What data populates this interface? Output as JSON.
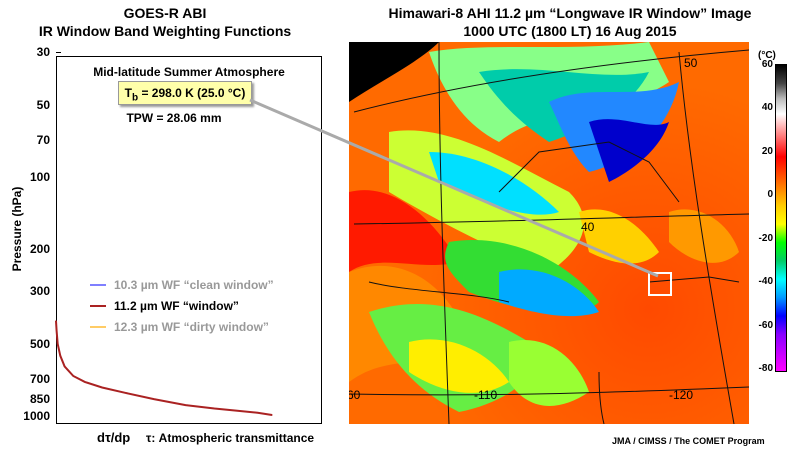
{
  "left_panel": {
    "title_line1": "GOES-R ABI",
    "title_line2": "IR Window Band Weighting Functions",
    "atmosphere": "Mid-latitude Summer Atmosphere",
    "tb_prefix": "T",
    "tb_sub": "b",
    "tb_value": " = 298.0 K (25.0 °C)",
    "tpw": "TPW = 28.06 mm",
    "x_label_main": "dτ/dp",
    "x_label_desc": "τ: Atmospheric transmittance"
  },
  "right_panel": {
    "title_line1": "Himawari-8 AHI 11.2 µm “Longwave IR Window” Image",
    "title_line2": "1000 UTC (1800 LT)  16 Aug 2015",
    "credit": "JMA / CIMSS / The COMET Program",
    "map_labels": [
      "50",
      "40",
      "-110",
      "-120",
      "60"
    ],
    "colorbar": {
      "unit": "(°C)",
      "ticks": [
        "60",
        "40",
        "20",
        "0",
        "-20",
        "-40",
        "-60",
        "-80"
      ],
      "min": -80,
      "max": 60
    }
  },
  "chart_data": {
    "type": "line",
    "xlabel": "dτ/dp",
    "ylabel": "Pressure (hPa)",
    "y_scale": "log",
    "y_reversed": true,
    "ylim": [
      30,
      1100
    ],
    "y_ticks": [
      30,
      50,
      70,
      100,
      200,
      300,
      500,
      700,
      850,
      1000
    ],
    "y_tick_labels": [
      "30",
      "50",
      "70",
      "100",
      "200",
      "300",
      "500",
      "700",
      "850",
      "1000"
    ],
    "legend": "left-middle",
    "series": [
      {
        "name": "10.3 µm WF “clean window”",
        "color": "#7f7fff",
        "shown": false,
        "points": []
      },
      {
        "name": "11.2 µm WF “window”",
        "color": "#aa2222",
        "shown": true,
        "points": [
          [
            0.0,
            400
          ],
          [
            0.002,
            440
          ],
          [
            0.006,
            500
          ],
          [
            0.015,
            560
          ],
          [
            0.03,
            620
          ],
          [
            0.06,
            680
          ],
          [
            0.1,
            720
          ],
          [
            0.16,
            760
          ],
          [
            0.24,
            800
          ],
          [
            0.34,
            850
          ],
          [
            0.45,
            900
          ],
          [
            0.55,
            930
          ],
          [
            0.63,
            950
          ],
          [
            0.7,
            970
          ],
          [
            0.75,
            990
          ]
        ]
      },
      {
        "name": "12.3 µm WF “dirty window”",
        "color": "#ffcc66",
        "shown": false,
        "points": []
      }
    ]
  },
  "colors": {
    "window_wf": "#aa2222",
    "clean_wf": "#7f7fff",
    "dirty_wf": "#ffcc66",
    "tb_box": "#ffffaa"
  }
}
